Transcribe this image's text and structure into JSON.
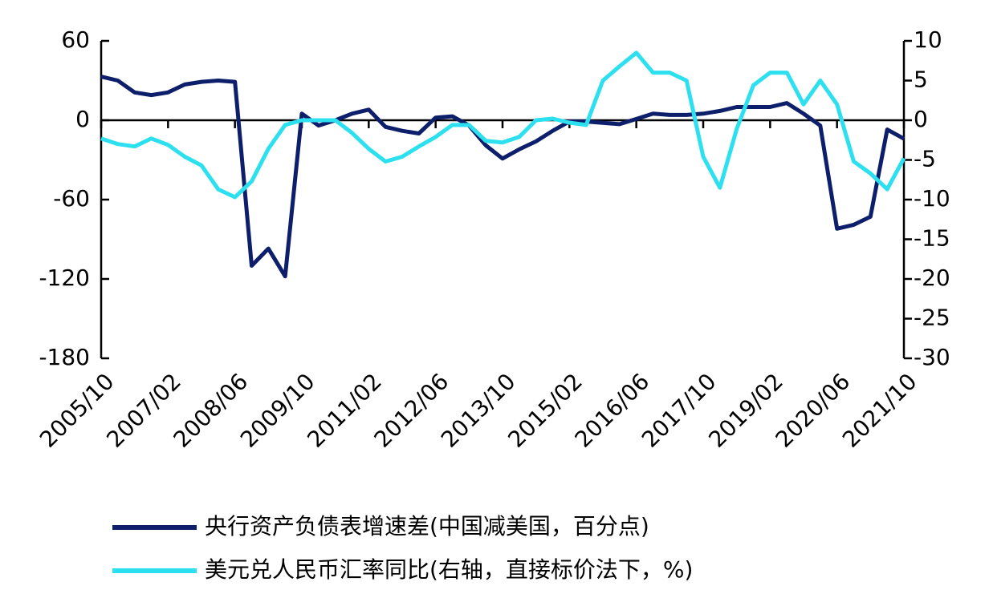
{
  "chart_data": {
    "type": "line",
    "categories": [
      "2005/10",
      null,
      null,
      null,
      "2007/02",
      null,
      null,
      null,
      "2008/06",
      null,
      null,
      null,
      "2009/10",
      null,
      null,
      null,
      "2011/02",
      null,
      null,
      null,
      "2012/06",
      null,
      null,
      null,
      "2013/10",
      null,
      null,
      null,
      "2015/02",
      null,
      null,
      null,
      "2016/06",
      null,
      null,
      null,
      "2017/10",
      null,
      null,
      null,
      "2019/02",
      null,
      null,
      null,
      "2020/06",
      null,
      null,
      null,
      "2021/10"
    ],
    "series": [
      {
        "name": "央行资产负债表增速差(中国减美国，百分点)",
        "color": "#0d1f6b",
        "axis": "y",
        "values": [
          33,
          30,
          21,
          19,
          21,
          27,
          29,
          30,
          29,
          -110,
          -97,
          -118,
          5,
          -4,
          0,
          5,
          8,
          -5,
          -8,
          -10,
          2,
          3,
          -4,
          -19,
          -29,
          -22,
          -16,
          -8,
          -1,
          -1,
          -2,
          -3,
          1,
          5,
          4,
          4,
          5,
          7,
          10,
          10,
          10,
          13,
          5,
          -4,
          -82,
          -79,
          -73,
          -7,
          -14
        ]
      },
      {
        "name": "美元兑人民币汇率同比(右轴，直接标价法下，%)",
        "color": "#2de0f0",
        "axis": "y2",
        "values": [
          -2.3,
          -3,
          -3.3,
          -2.3,
          -3.1,
          -4.6,
          -5.7,
          -8.7,
          -9.7,
          -7.7,
          -3.6,
          -0.6,
          0,
          0,
          0,
          -1.6,
          -3.6,
          -5.2,
          -4.6,
          -3.3,
          -2.1,
          -0.6,
          -0.6,
          -2.6,
          -2.8,
          -2.1,
          0,
          0.2,
          -0.3,
          -0.6,
          5,
          6.8,
          8.5,
          6,
          6,
          5,
          -4.6,
          -8.5,
          -1.1,
          4.4,
          6,
          6,
          2,
          5,
          2,
          -5.2,
          -6.7,
          -8.7,
          -4.8
        ]
      }
    ],
    "ylim": [
      -180,
      60
    ],
    "yticks": [
      -180,
      -120,
      -60,
      0,
      60
    ],
    "y2lim": [
      -30,
      10
    ],
    "y2ticks": [
      -30,
      -25,
      -20,
      -15,
      -10,
      -5,
      0,
      5,
      10
    ],
    "legend": "bottom"
  }
}
